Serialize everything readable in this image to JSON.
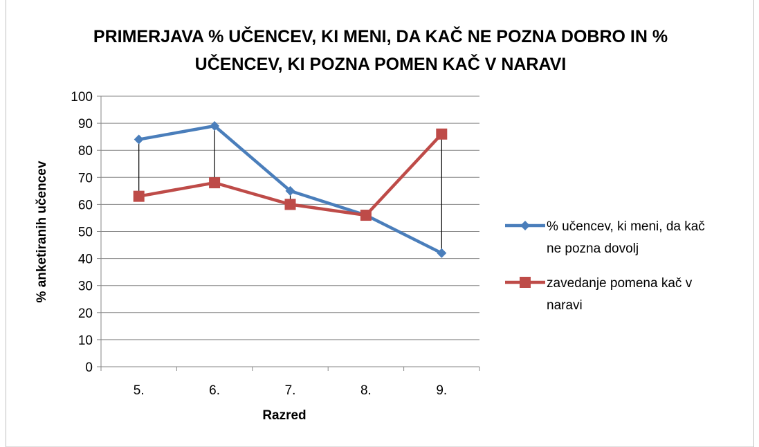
{
  "chart_data": {
    "type": "line",
    "title": "PRIMERJAVA % UČENCEV, KI MENI, DA KAČ NE POZNA DOBRO IN % UČENCEV, KI POZNA POMEN KAČ V NARAVI",
    "x_label": "Razred",
    "y_label": "% anketiranih učencev",
    "categories": [
      "5.",
      "6.",
      "7.",
      "8.",
      "9."
    ],
    "series": [
      {
        "name": "% učencev, ki meni, da kač ne pozna dovolj",
        "color": "#4a7ebb",
        "marker": "diamond",
        "values": [
          84,
          89,
          65,
          56,
          42
        ]
      },
      {
        "name": "zavedanje pomena kač v naravi",
        "color": "#be4b48",
        "marker": "square",
        "values": [
          63,
          68,
          60,
          56,
          86
        ]
      }
    ],
    "ylim": [
      0,
      100
    ],
    "yticks": [
      0,
      10,
      20,
      30,
      40,
      50,
      60,
      70,
      80,
      90,
      100
    ],
    "grid": true,
    "high_low_lines": true,
    "legend": "right"
  }
}
